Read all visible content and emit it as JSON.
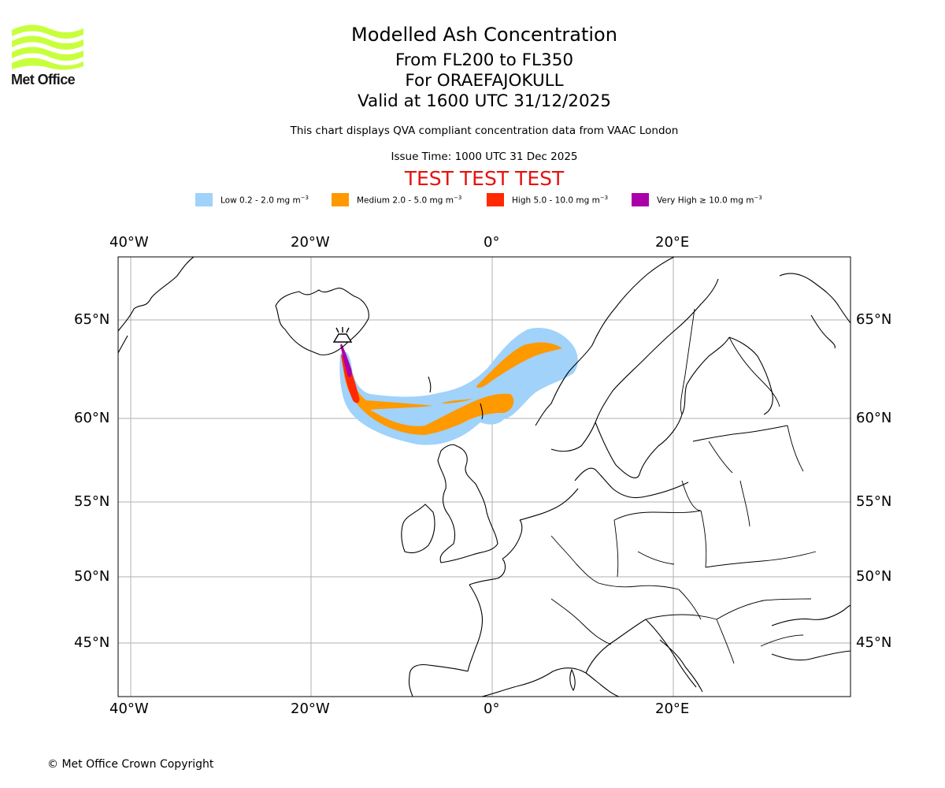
{
  "header": {
    "title": "Modelled Ash Concentration",
    "levels": "From FL200 to FL350",
    "volcano": "For ORAEFAJOKULL",
    "valid": "Valid at 1600 UTC 31/12/2025",
    "description": "This chart displays QVA compliant concentration data from VAAC London",
    "issue_time": "Issue Time: 1000 UTC 31 Dec 2025",
    "test_banner": "TEST TEST TEST"
  },
  "logo": {
    "text": "Met Office",
    "color": "#c8ff3c"
  },
  "legend": [
    {
      "label": "Low 0.2 - 2.0 mg m",
      "color": "#a0d2fa"
    },
    {
      "label": "Medium 2.0 - 5.0 mg m",
      "color": "#ff9900"
    },
    {
      "label": "High 5.0 - 10.0 mg m",
      "color": "#ff2a00"
    },
    {
      "label": "Very High ≥ 10.0 mg m",
      "color": "#aa00aa"
    }
  ],
  "legend_unit_exponent": "−3",
  "axes": {
    "lon_labels": [
      "40°W",
      "20°W",
      "0°",
      "20°E"
    ],
    "lat_labels": [
      "65°N",
      "60°N",
      "55°N",
      "50°N",
      "45°N"
    ]
  },
  "footer": {
    "copyright": "© Met Office Crown Copyright"
  }
}
